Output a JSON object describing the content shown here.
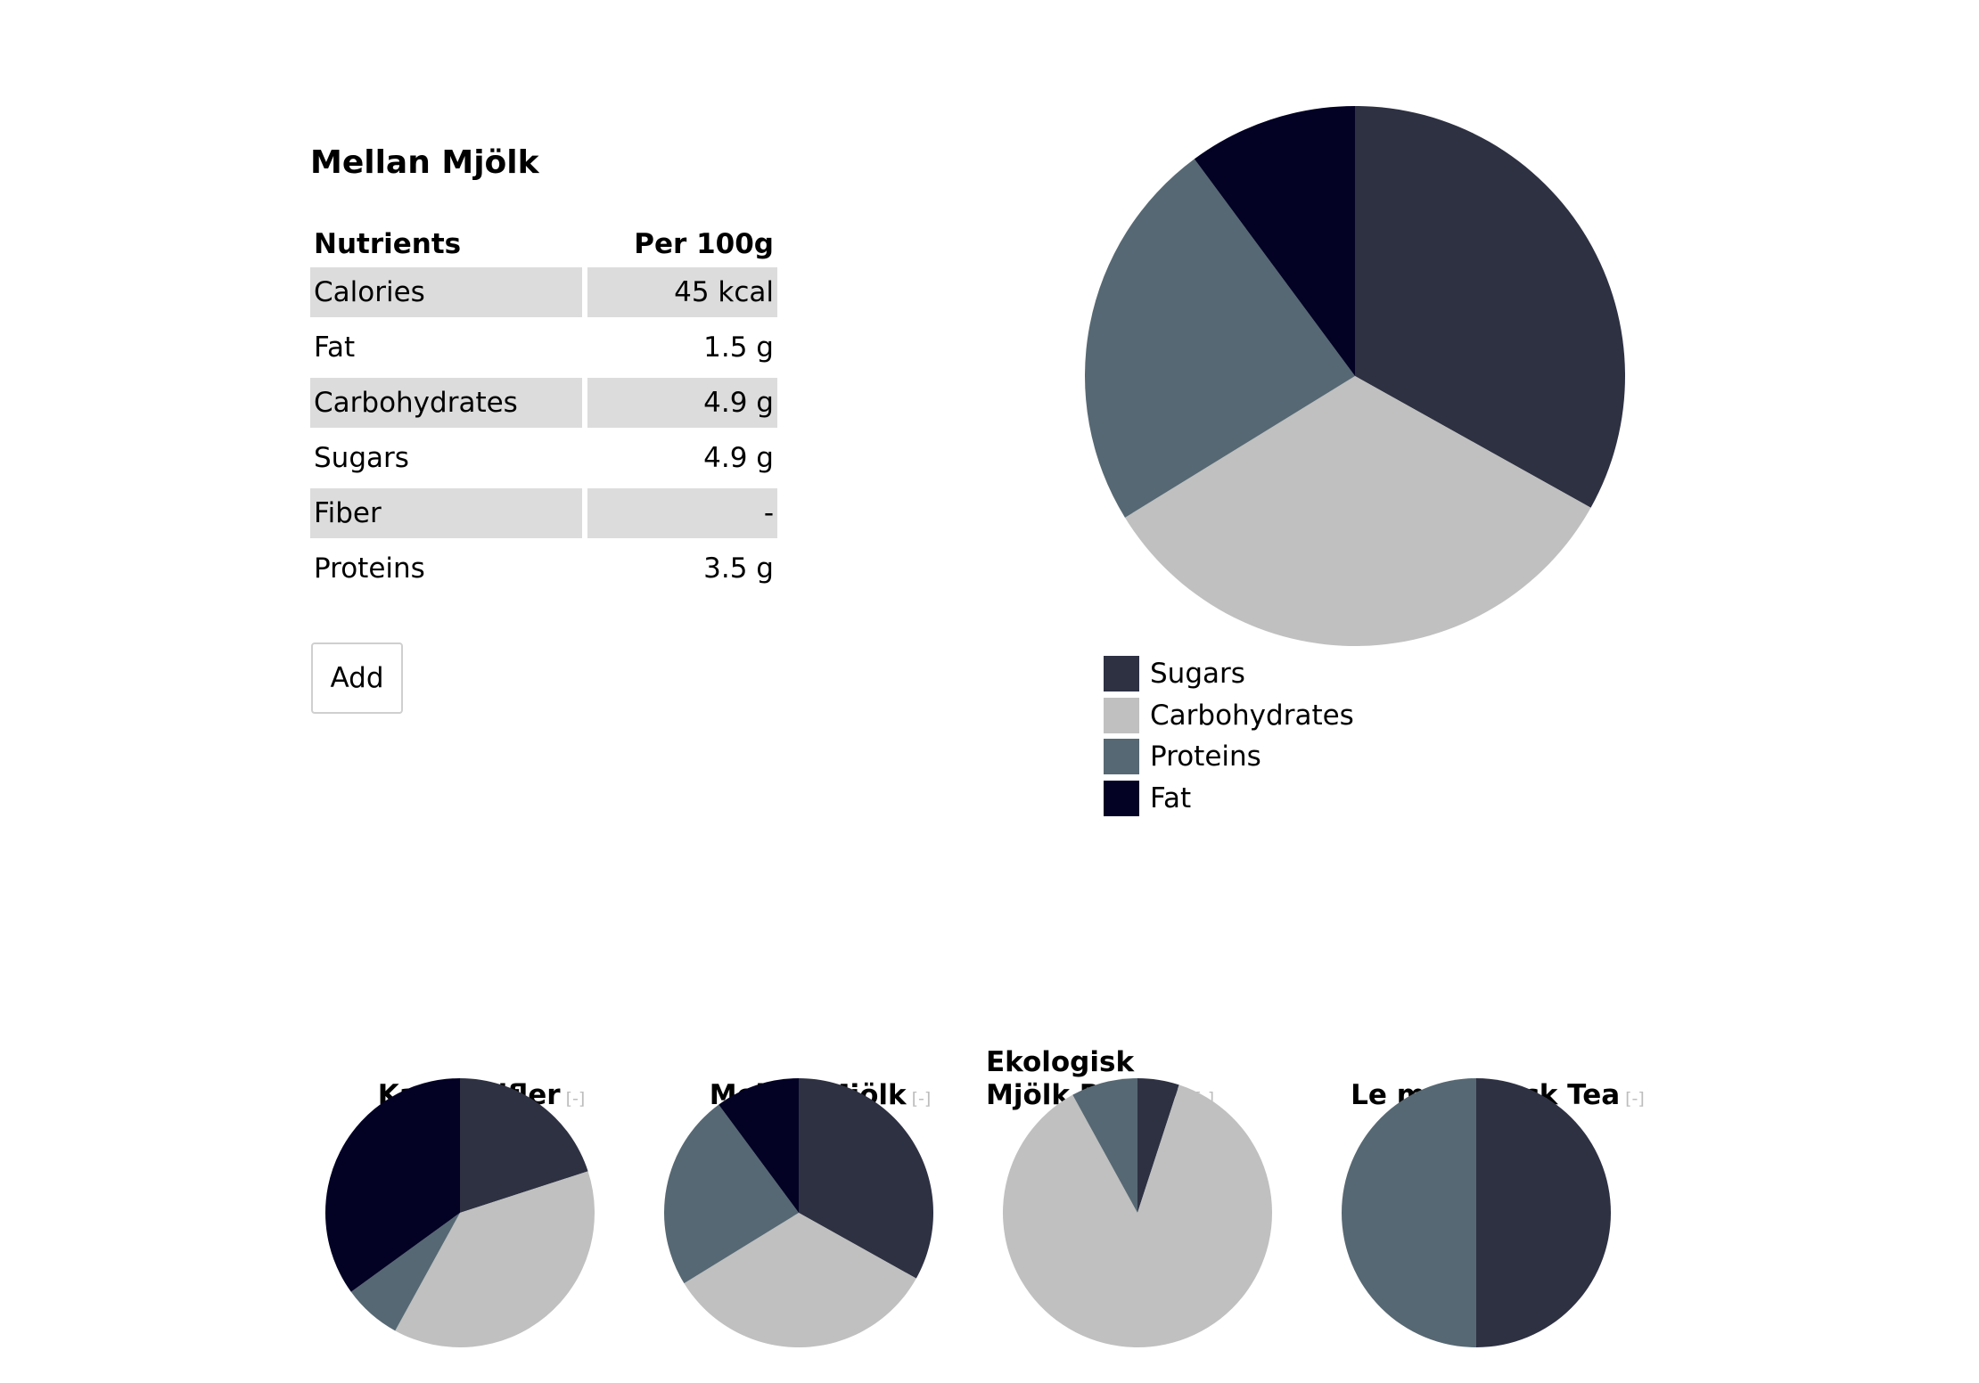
{
  "product": {
    "title": "Mellan Mjölk",
    "table_header": {
      "nutrient": "Nutrients",
      "amount": "Per 100g"
    },
    "rows": [
      {
        "name": "Calories",
        "value": "45 kcal"
      },
      {
        "name": "Fat",
        "value": "1.5 g"
      },
      {
        "name": "Carbohydrates",
        "value": "4.9 g"
      },
      {
        "name": "Sugars",
        "value": "4.9 g"
      },
      {
        "name": "Fiber",
        "value": "-"
      },
      {
        "name": "Proteins",
        "value": "3.5 g"
      }
    ],
    "add_label": "Add"
  },
  "colors": {
    "Sugars": "#2e3142",
    "Carbohydrates": "#bfc0bf",
    "Proteins": "#566873",
    "Fat": "#030225"
  },
  "legend": [
    "Sugars",
    "Carbohydrates",
    "Proteins",
    "Fat"
  ],
  "remove_label": "[-]",
  "chart_data": [
    {
      "type": "pie",
      "title": "Mellan Mjölk",
      "categories": [
        "Sugars",
        "Carbohydrates",
        "Proteins",
        "Fat"
      ],
      "values": [
        4.9,
        4.9,
        3.5,
        1.5
      ],
      "legend": "bottom"
    },
    {
      "type": "pie",
      "title": "Kanel Gifler",
      "categories": [
        "Sugars",
        "Carbohydrates",
        "Proteins",
        "Fat"
      ],
      "values": [
        20,
        38,
        7,
        35
      ]
    },
    {
      "type": "pie",
      "title": "Mellan Mjölk",
      "categories": [
        "Sugars",
        "Carbohydrates",
        "Proteins",
        "Fat"
      ],
      "values": [
        4.9,
        4.9,
        3.5,
        1.5
      ]
    },
    {
      "type": "pie",
      "title": "Ekologisk Mjölk Potatis",
      "categories": [
        "Sugars",
        "Carbohydrates",
        "Proteins",
        "Fat"
      ],
      "values": [
        5,
        87,
        8,
        0
      ]
    },
    {
      "type": "pie",
      "title": "Le mon Black Tea",
      "categories": [
        "Sugars",
        "Carbohydrates",
        "Proteins",
        "Fat"
      ],
      "values": [
        50,
        0,
        50,
        0
      ]
    }
  ]
}
